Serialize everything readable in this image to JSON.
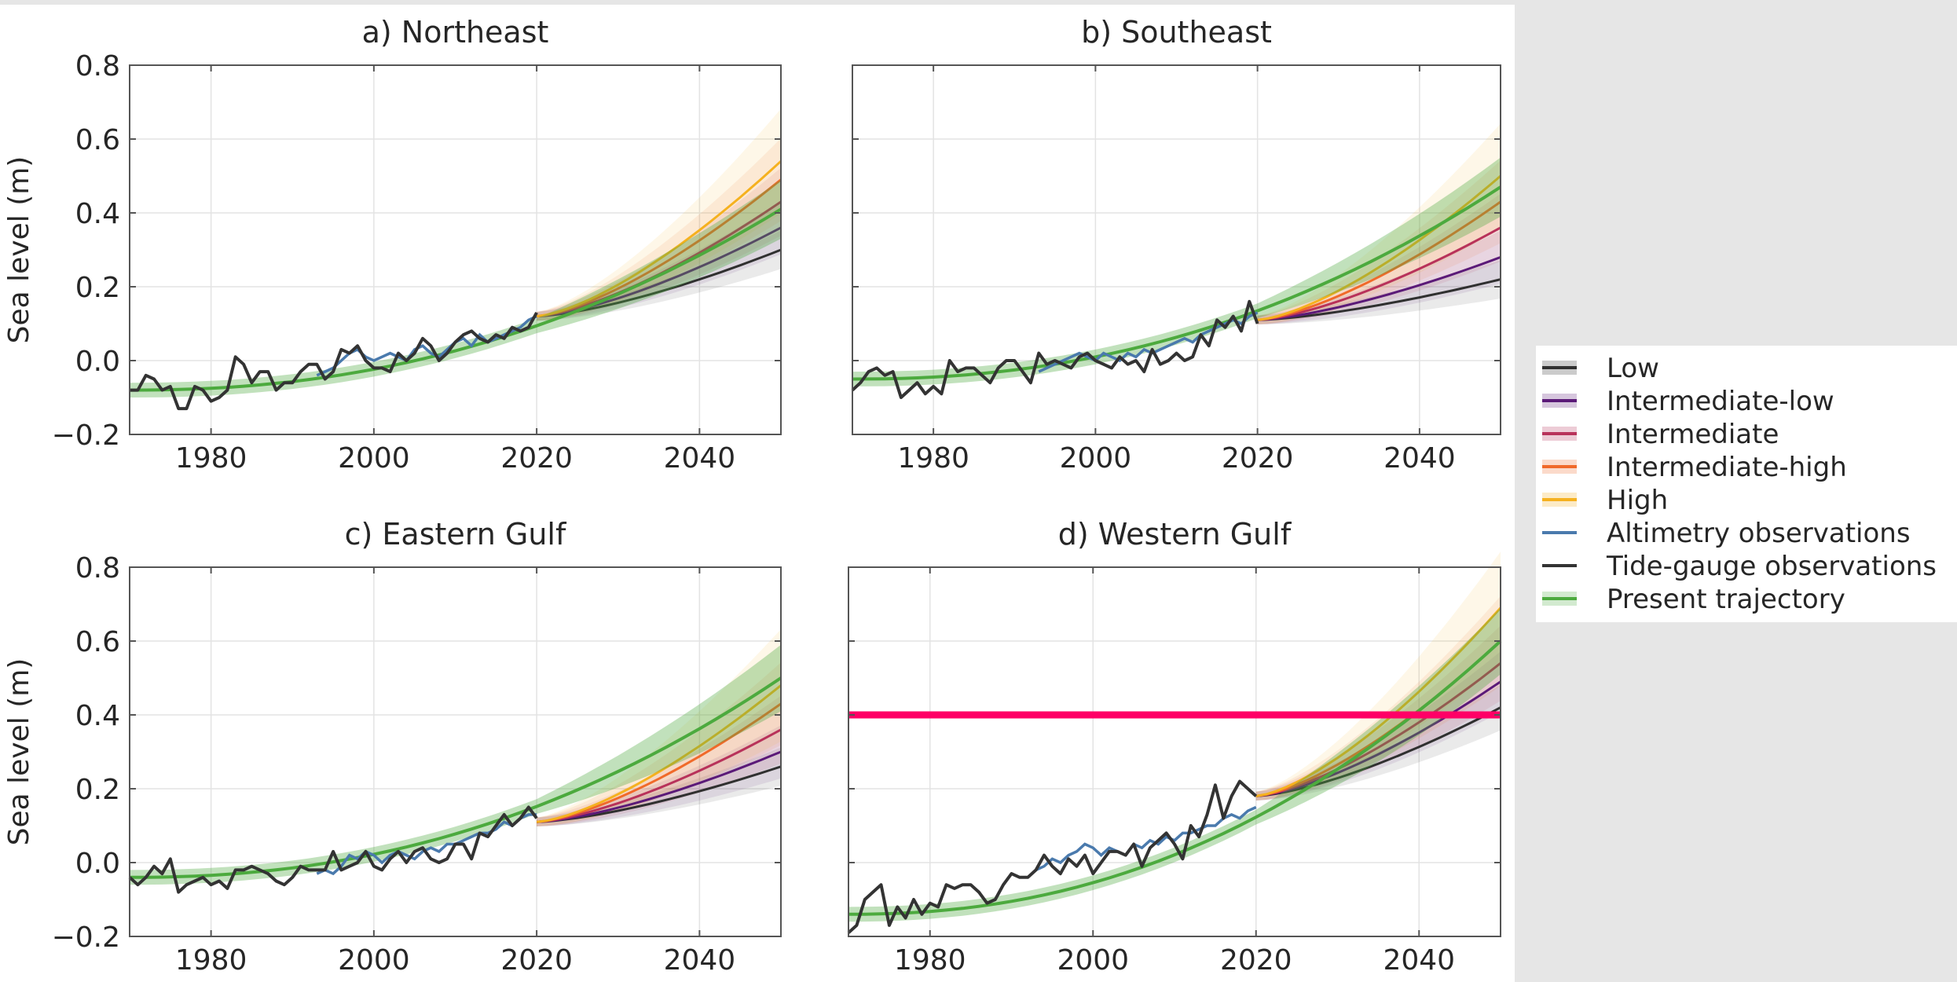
{
  "figure": {
    "colors": {
      "background": "#e6e6e6",
      "panel_bg": "#ffffff",
      "grid": "#e3e3e3",
      "axis": "#555555",
      "marker_line": "#ff0066"
    },
    "legend": {
      "placement": "right, vertically centered",
      "entries": [
        {
          "label": "Low",
          "color": "#303030",
          "kind": "line-band"
        },
        {
          "label": "Intermediate-low",
          "color": "#5b1a78",
          "kind": "line-band"
        },
        {
          "label": "Intermediate",
          "color": "#b8325a",
          "kind": "line-band"
        },
        {
          "label": "Intermediate-high",
          "color": "#f06a2a",
          "kind": "line-band"
        },
        {
          "label": "High",
          "color": "#f5b11f",
          "kind": "line-band"
        },
        {
          "label": "Altimetry observations",
          "color": "#4a7aad",
          "kind": "line"
        },
        {
          "label": "Tide-gauge observations",
          "color": "#333333",
          "kind": "line"
        },
        {
          "label": "Present trajectory",
          "color": "#4caa3e",
          "kind": "line-band"
        }
      ]
    }
  },
  "chart_data": [
    {
      "type": "line",
      "title": "a) Northeast",
      "xlabel": "",
      "ylabel": "Sea level (m)",
      "xlim": [
        1970,
        2050
      ],
      "ylim": [
        -0.2,
        0.8
      ],
      "xticks": [
        "1980",
        "2000",
        "2020",
        "2040"
      ],
      "yticks": [
        "−0.2",
        "0.0",
        "0.2",
        "0.4",
        "0.6",
        "0.8"
      ],
      "grid": true,
      "tide_gauge": {
        "x": [
          1970,
          1971,
          1972,
          1973,
          1974,
          1975,
          1976,
          1977,
          1978,
          1979,
          1980,
          1981,
          1982,
          1983,
          1984,
          1985,
          1986,
          1987,
          1988,
          1989,
          1990,
          1991,
          1992,
          1993,
          1994,
          1995,
          1996,
          1997,
          1998,
          1999,
          2000,
          2001,
          2002,
          2003,
          2004,
          2005,
          2006,
          2007,
          2008,
          2009,
          2010,
          2011,
          2012,
          2013,
          2014,
          2015,
          2016,
          2017,
          2018,
          2019,
          2020
        ],
        "y": [
          -0.08,
          -0.08,
          -0.04,
          -0.05,
          -0.08,
          -0.07,
          -0.13,
          -0.13,
          -0.07,
          -0.08,
          -0.11,
          -0.1,
          -0.08,
          0.01,
          -0.01,
          -0.06,
          -0.03,
          -0.03,
          -0.08,
          -0.06,
          -0.06,
          -0.03,
          -0.01,
          -0.01,
          -0.05,
          -0.03,
          0.03,
          0.02,
          0.04,
          0.0,
          -0.02,
          -0.02,
          -0.03,
          0.02,
          0.0,
          0.02,
          0.06,
          0.04,
          0.0,
          0.02,
          0.05,
          0.07,
          0.08,
          0.06,
          0.05,
          0.07,
          0.06,
          0.09,
          0.08,
          0.09,
          0.13
        ]
      },
      "altimetry": {
        "x": [
          1993,
          1994,
          1995,
          1996,
          1997,
          1998,
          1999,
          2000,
          2001,
          2002,
          2003,
          2004,
          2005,
          2006,
          2007,
          2008,
          2009,
          2010,
          2011,
          2012,
          2013,
          2014,
          2015,
          2016,
          2017,
          2018,
          2019,
          2020
        ],
        "y": [
          -0.04,
          -0.03,
          -0.02,
          0.0,
          0.02,
          0.03,
          0.01,
          0.0,
          0.01,
          0.02,
          0.01,
          0.0,
          0.03,
          0.04,
          0.02,
          0.01,
          0.03,
          0.05,
          0.06,
          0.04,
          0.07,
          0.05,
          0.06,
          0.07,
          0.08,
          0.09,
          0.11,
          0.12
        ]
      },
      "present_trajectory": {
        "start": [
          1970,
          -0.08
        ],
        "end": [
          2050,
          0.41
        ],
        "band_halfwidth_2020": 0.02,
        "band_halfwidth_2050": 0.08
      },
      "scenarios": [
        {
          "name": "Low",
          "y2050": 0.3,
          "spread": 0.04
        },
        {
          "name": "Intermediate-low",
          "y2050": 0.36,
          "spread": 0.06
        },
        {
          "name": "Intermediate",
          "y2050": 0.43,
          "spread": 0.08
        },
        {
          "name": "Intermediate-high",
          "y2050": 0.49,
          "spread": 0.1
        },
        {
          "name": "High",
          "y2050": 0.54,
          "spread": 0.13
        }
      ],
      "scenario_start": [
        2020,
        0.12
      ],
      "hline": null
    },
    {
      "type": "line",
      "title": "b) Southeast",
      "xlabel": "",
      "ylabel": "",
      "xlim": [
        1970,
        2050
      ],
      "ylim": [
        -0.2,
        0.8
      ],
      "xticks": [
        "1980",
        "2000",
        "2020",
        "2040"
      ],
      "yticks": [],
      "grid": true,
      "tide_gauge": {
        "x": [
          1970,
          1971,
          1972,
          1973,
          1974,
          1975,
          1976,
          1977,
          1978,
          1979,
          1980,
          1981,
          1982,
          1983,
          1984,
          1985,
          1986,
          1987,
          1988,
          1989,
          1990,
          1991,
          1992,
          1993,
          1994,
          1995,
          1996,
          1997,
          1998,
          1999,
          2000,
          2001,
          2002,
          2003,
          2004,
          2005,
          2006,
          2007,
          2008,
          2009,
          2010,
          2011,
          2012,
          2013,
          2014,
          2015,
          2016,
          2017,
          2018,
          2019,
          2020
        ],
        "y": [
          -0.08,
          -0.06,
          -0.03,
          -0.02,
          -0.04,
          -0.03,
          -0.1,
          -0.08,
          -0.06,
          -0.09,
          -0.07,
          -0.09,
          0.0,
          -0.03,
          -0.02,
          -0.02,
          -0.04,
          -0.06,
          -0.02,
          0.0,
          0.0,
          -0.03,
          -0.06,
          0.02,
          -0.01,
          0.0,
          -0.01,
          -0.02,
          0.01,
          0.02,
          0.0,
          -0.01,
          -0.02,
          0.01,
          -0.01,
          0.0,
          -0.03,
          0.03,
          -0.01,
          0.0,
          0.02,
          0.0,
          0.01,
          0.07,
          0.04,
          0.11,
          0.09,
          0.12,
          0.08,
          0.16,
          0.1
        ]
      },
      "altimetry": {
        "x": [
          1993,
          1994,
          1995,
          1996,
          1997,
          1998,
          1999,
          2000,
          2001,
          2002,
          2003,
          2004,
          2005,
          2006,
          2007,
          2008,
          2009,
          2010,
          2011,
          2012,
          2013,
          2014,
          2015,
          2016,
          2017,
          2018,
          2019,
          2020
        ],
        "y": [
          -0.03,
          -0.02,
          -0.01,
          0.0,
          0.01,
          0.02,
          0.01,
          0.0,
          0.02,
          0.01,
          0.0,
          0.02,
          0.01,
          0.03,
          0.02,
          0.03,
          0.04,
          0.05,
          0.06,
          0.05,
          0.07,
          0.08,
          0.09,
          0.1,
          0.11,
          0.1,
          0.12,
          0.13
        ]
      },
      "present_trajectory": {
        "start": [
          1970,
          -0.05
        ],
        "end": [
          2050,
          0.47
        ],
        "band_halfwidth_2020": 0.02,
        "band_halfwidth_2050": 0.08
      },
      "scenarios": [
        {
          "name": "Low",
          "y2050": 0.22,
          "spread": 0.04
        },
        {
          "name": "Intermediate-low",
          "y2050": 0.28,
          "spread": 0.06
        },
        {
          "name": "Intermediate",
          "y2050": 0.36,
          "spread": 0.08
        },
        {
          "name": "Intermediate-high",
          "y2050": 0.43,
          "spread": 0.1
        },
        {
          "name": "High",
          "y2050": 0.5,
          "spread": 0.13
        }
      ],
      "scenario_start": [
        2020,
        0.11
      ],
      "hline": null
    },
    {
      "type": "line",
      "title": "c) Eastern Gulf",
      "xlabel": "",
      "ylabel": "Sea level (m)",
      "xlim": [
        1970,
        2050
      ],
      "ylim": [
        -0.2,
        0.8
      ],
      "xticks": [
        "1980",
        "2000",
        "2020",
        "2040"
      ],
      "yticks": [
        "−0.2",
        "0.0",
        "0.2",
        "0.4",
        "0.6",
        "0.8"
      ],
      "grid": true,
      "tide_gauge": {
        "x": [
          1970,
          1971,
          1972,
          1973,
          1974,
          1975,
          1976,
          1977,
          1978,
          1979,
          1980,
          1981,
          1982,
          1983,
          1984,
          1985,
          1986,
          1987,
          1988,
          1989,
          1990,
          1991,
          1992,
          1993,
          1994,
          1995,
          1996,
          1997,
          1998,
          1999,
          2000,
          2001,
          2002,
          2003,
          2004,
          2005,
          2006,
          2007,
          2008,
          2009,
          2010,
          2011,
          2012,
          2013,
          2014,
          2015,
          2016,
          2017,
          2018,
          2019,
          2020
        ],
        "y": [
          -0.04,
          -0.06,
          -0.04,
          -0.01,
          -0.03,
          0.01,
          -0.08,
          -0.06,
          -0.05,
          -0.04,
          -0.06,
          -0.05,
          -0.07,
          -0.02,
          -0.02,
          -0.01,
          -0.02,
          -0.03,
          -0.05,
          -0.06,
          -0.04,
          -0.01,
          -0.02,
          -0.02,
          -0.02,
          0.03,
          -0.02,
          -0.01,
          0.0,
          0.03,
          -0.01,
          -0.02,
          0.01,
          0.03,
          0.0,
          0.03,
          0.04,
          0.01,
          0.0,
          0.01,
          0.05,
          0.05,
          0.01,
          0.08,
          0.07,
          0.1,
          0.13,
          0.1,
          0.12,
          0.15,
          0.12
        ]
      },
      "altimetry": {
        "x": [
          1993,
          1994,
          1995,
          1996,
          1997,
          1998,
          1999,
          2000,
          2001,
          2002,
          2003,
          2004,
          2005,
          2006,
          2007,
          2008,
          2009,
          2010,
          2011,
          2012,
          2013,
          2014,
          2015,
          2016,
          2017,
          2018,
          2019,
          2020
        ],
        "y": [
          -0.03,
          -0.02,
          -0.03,
          -0.01,
          0.02,
          0.01,
          0.03,
          0.02,
          0.0,
          0.02,
          0.03,
          0.02,
          0.01,
          0.03,
          0.04,
          0.03,
          0.05,
          0.05,
          0.06,
          0.07,
          0.08,
          0.08,
          0.09,
          0.11,
          0.1,
          0.12,
          0.13,
          0.13
        ]
      },
      "present_trajectory": {
        "start": [
          1970,
          -0.04
        ],
        "end": [
          2050,
          0.5
        ],
        "band_halfwidth_2020": 0.02,
        "band_halfwidth_2050": 0.09
      },
      "scenarios": [
        {
          "name": "Low",
          "y2050": 0.26,
          "spread": 0.04
        },
        {
          "name": "Intermediate-low",
          "y2050": 0.3,
          "spread": 0.06
        },
        {
          "name": "Intermediate",
          "y2050": 0.36,
          "spread": 0.08
        },
        {
          "name": "Intermediate-high",
          "y2050": 0.43,
          "spread": 0.1
        },
        {
          "name": "High",
          "y2050": 0.48,
          "spread": 0.14
        }
      ],
      "scenario_start": [
        2020,
        0.11
      ],
      "hline": null
    },
    {
      "type": "line",
      "title": "d) Western Gulf",
      "xlabel": "",
      "ylabel": "",
      "xlim": [
        1970,
        2050
      ],
      "ylim": [
        -0.2,
        0.8
      ],
      "xticks": [
        "1980",
        "2000",
        "2020",
        "2040"
      ],
      "yticks": [],
      "grid": true,
      "tide_gauge": {
        "x": [
          1970,
          1971,
          1972,
          1973,
          1974,
          1975,
          1976,
          1977,
          1978,
          1979,
          1980,
          1981,
          1982,
          1983,
          1984,
          1985,
          1986,
          1987,
          1988,
          1989,
          1990,
          1991,
          1992,
          1993,
          1994,
          1995,
          1996,
          1997,
          1998,
          1999,
          2000,
          2001,
          2002,
          2003,
          2004,
          2005,
          2006,
          2007,
          2008,
          2009,
          2010,
          2011,
          2012,
          2013,
          2014,
          2015,
          2016,
          2017,
          2018,
          2019,
          2020
        ],
        "y": [
          -0.19,
          -0.17,
          -0.1,
          -0.08,
          -0.06,
          -0.17,
          -0.12,
          -0.15,
          -0.1,
          -0.14,
          -0.11,
          -0.12,
          -0.06,
          -0.07,
          -0.06,
          -0.06,
          -0.08,
          -0.11,
          -0.1,
          -0.06,
          -0.03,
          -0.04,
          -0.04,
          -0.02,
          0.02,
          -0.01,
          -0.03,
          0.01,
          -0.01,
          0.02,
          -0.03,
          0.0,
          0.03,
          0.03,
          0.02,
          0.05,
          -0.01,
          0.04,
          0.06,
          0.08,
          0.05,
          0.01,
          0.1,
          0.07,
          0.13,
          0.21,
          0.12,
          0.18,
          0.22,
          0.2,
          0.18
        ]
      },
      "altimetry": {
        "x": [
          1993,
          1994,
          1995,
          1996,
          1997,
          1998,
          1999,
          2000,
          2001,
          2002,
          2003,
          2004,
          2005,
          2006,
          2007,
          2008,
          2009,
          2010,
          2011,
          2012,
          2013,
          2014,
          2015,
          2016,
          2017,
          2018,
          2019,
          2020
        ],
        "y": [
          -0.02,
          -0.01,
          0.01,
          0.0,
          0.02,
          0.03,
          0.05,
          0.04,
          0.02,
          0.04,
          0.03,
          0.02,
          0.05,
          0.04,
          0.06,
          0.05,
          0.07,
          0.06,
          0.08,
          0.08,
          0.09,
          0.1,
          0.1,
          0.12,
          0.13,
          0.12,
          0.14,
          0.15
        ]
      },
      "present_trajectory": {
        "start": [
          1970,
          -0.14
        ],
        "end": [
          2050,
          0.6
        ],
        "band_halfwidth_2020": 0.02,
        "band_halfwidth_2050": 0.09
      },
      "scenarios": [
        {
          "name": "Low",
          "y2050": 0.42,
          "spread": 0.05
        },
        {
          "name": "Intermediate-low",
          "y2050": 0.49,
          "spread": 0.07
        },
        {
          "name": "Intermediate",
          "y2050": 0.54,
          "spread": 0.09
        },
        {
          "name": "Intermediate-high",
          "y2050": 0.6,
          "spread": 0.11
        },
        {
          "name": "High",
          "y2050": 0.69,
          "spread": 0.14
        }
      ],
      "scenario_start": [
        2020,
        0.18
      ],
      "hline": {
        "y": 0.4,
        "color": "#ff0066"
      }
    }
  ]
}
